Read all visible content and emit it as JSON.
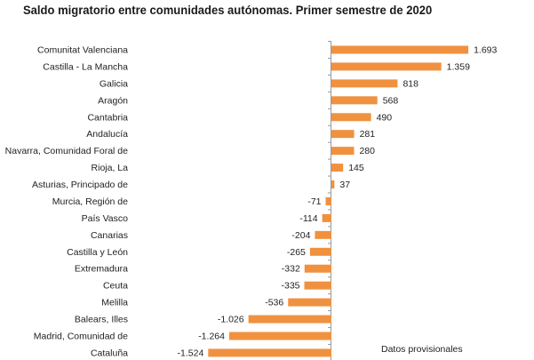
{
  "chart_data": {
    "type": "bar",
    "orientation": "horizontal",
    "title": "Saldo migratorio entre comunidades autónomas. Primer semestre de 2020",
    "note": "Datos provisionales",
    "color": "#f0913f",
    "grid": false,
    "categories": [
      "Comunitat Valenciana",
      "Castilla - La Mancha",
      "Galicia",
      "Aragón",
      "Cantabria",
      "Andalucía",
      "Navarra, Comunidad Foral de",
      "Rioja, La",
      "Asturias, Principado de",
      "Murcia, Región de",
      "País Vasco",
      "Canarias",
      "Castilla y León",
      "Extremadura",
      "Ceuta",
      "Melilla",
      "Balears, Illes",
      "Madrid, Comunidad de",
      "Cataluña"
    ],
    "values": [
      1693,
      1359,
      818,
      568,
      490,
      281,
      280,
      145,
      37,
      -71,
      -114,
      -204,
      -265,
      -332,
      -335,
      -536,
      -1026,
      -1264,
      -1524
    ],
    "value_labels": [
      "1.693",
      "1.359",
      "818",
      "568",
      "490",
      "281",
      "280",
      "145",
      "37",
      "-71",
      "-114",
      "-204",
      "-265",
      "-332",
      "-335",
      "-536",
      "-1.026",
      "-1.264",
      "-1.524"
    ]
  }
}
